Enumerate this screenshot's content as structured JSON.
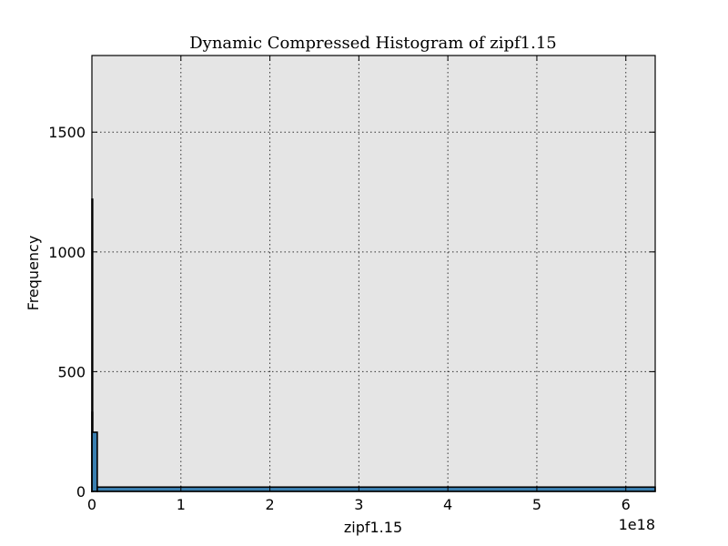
{
  "chart_data": {
    "type": "bar",
    "title": "Dynamic Compressed Histogram of zipf1.15",
    "xlabel": "zipf1.15",
    "ylabel": "Frequency",
    "x_offset_text": "1e18",
    "xlim": [
      0,
      6.33
    ],
    "ylim": [
      0,
      1820
    ],
    "x_ticks": [
      0,
      1,
      2,
      3,
      4,
      5,
      6
    ],
    "y_ticks": [
      0,
      500,
      1000,
      1500
    ],
    "grid": true,
    "bins": [
      {
        "x0": 0.0,
        "x1": 0.0005,
        "value": 1220
      },
      {
        "x0": 0.0005,
        "x1": 0.001,
        "value": 330
      },
      {
        "x0": 0.001,
        "x1": 0.06,
        "value": 247
      },
      {
        "x0": 0.06,
        "x1": 6.33,
        "value": 18
      }
    ],
    "colors": {
      "bar": "#3a7fb0",
      "plot_bg": "#e5e5e5"
    }
  }
}
